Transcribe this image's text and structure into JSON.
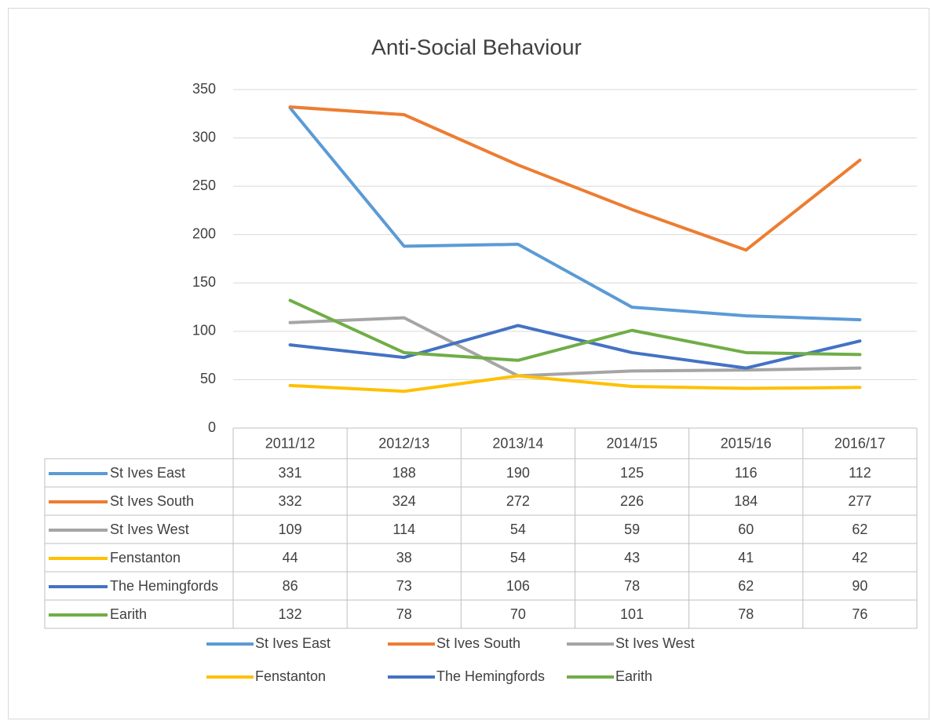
{
  "chart_data": {
    "type": "line",
    "title": "Anti-Social Behaviour",
    "categories": [
      "2011/12",
      "2012/13",
      "2013/14",
      "2014/15",
      "2015/16",
      "2016/17"
    ],
    "series": [
      {
        "name": "St Ives East",
        "color": "#5b9bd5",
        "values": [
          331,
          188,
          190,
          125,
          116,
          112
        ]
      },
      {
        "name": "St Ives South",
        "color": "#ed7d31",
        "values": [
          332,
          324,
          272,
          226,
          184,
          277
        ]
      },
      {
        "name": "St Ives West",
        "color": "#a5a5a5",
        "values": [
          109,
          114,
          54,
          59,
          60,
          62
        ]
      },
      {
        "name": "Fenstanton",
        "color": "#ffc000",
        "values": [
          44,
          38,
          54,
          43,
          41,
          42
        ]
      },
      {
        "name": "The Hemingfords",
        "color": "#4472c4",
        "values": [
          86,
          73,
          106,
          78,
          62,
          90
        ]
      },
      {
        "name": "Earith",
        "color": "#70ad47",
        "values": [
          132,
          78,
          70,
          101,
          78,
          76
        ]
      }
    ],
    "ylim": [
      0,
      350
    ],
    "yticks": [
      0,
      50,
      100,
      150,
      200,
      250,
      300,
      350
    ],
    "grid": true
  }
}
